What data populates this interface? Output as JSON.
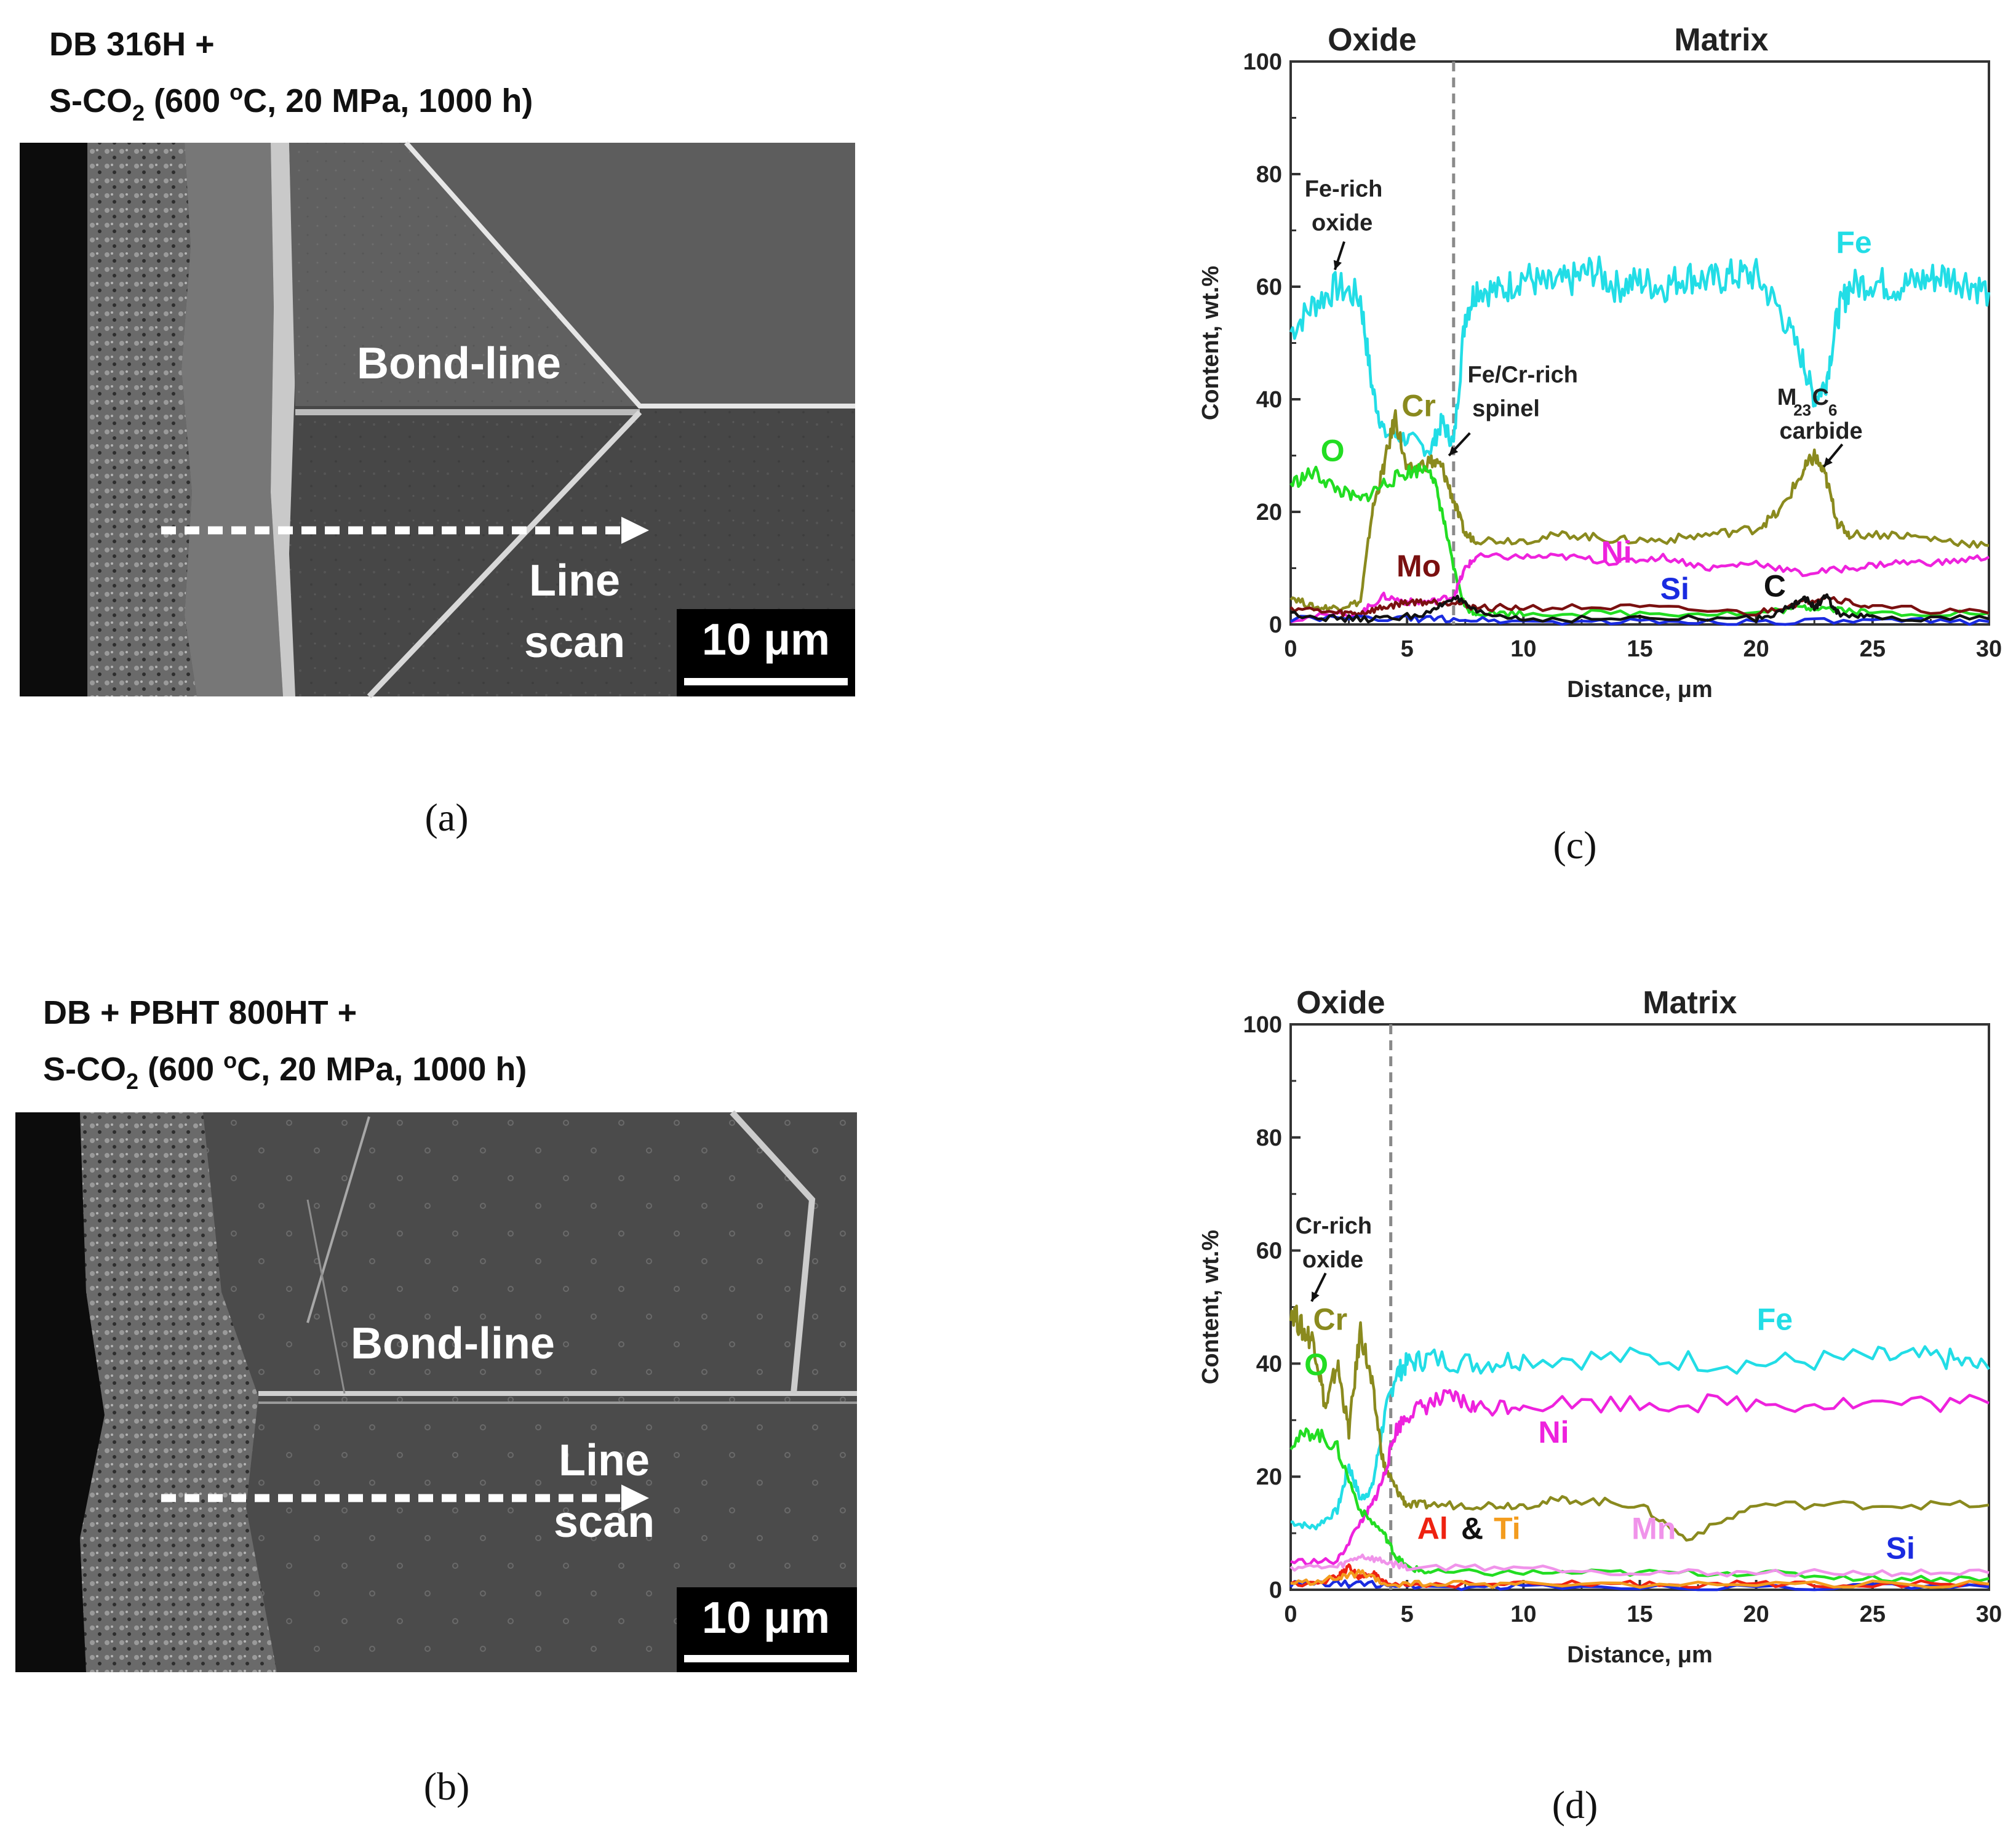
{
  "panels": {
    "a": {
      "title_line1": "DB 316H +",
      "title_line2_pre": "S-CO",
      "title_line2_sub": "2",
      "title_line2_post": " (600 ",
      "title_degree": "o",
      "title_line2_tail": "C, 20 MPa, 1000 h)",
      "label_bondline": "Bond-line",
      "label_line": "Line",
      "label_scan": "scan",
      "scale_bar": "10 μm",
      "caption": "(a)"
    },
    "b": {
      "title_line1": "DB + PBHT 800HT +",
      "title_line2_pre": "S-CO",
      "title_line2_sub": "2",
      "title_line2_post": " (600 ",
      "title_degree": "o",
      "title_line2_tail": "C, 20 MPa, 1000 h)",
      "label_bondline": "Bond-line",
      "label_line": "Line",
      "label_scan": "scan",
      "scale_bar": "10 μm",
      "caption": "(b)"
    },
    "c": {
      "caption": "(c)"
    },
    "d": {
      "caption": "(d)"
    }
  },
  "chart_data": [
    {
      "id": "c",
      "type": "line",
      "xlabel": "Distance, μm",
      "ylabel": "Content, wt.%",
      "xlim": [
        0,
        30
      ],
      "ylim": [
        0,
        100
      ],
      "xticks": [
        0,
        5,
        10,
        15,
        20,
        25,
        30
      ],
      "yticks": [
        0,
        20,
        40,
        60,
        80,
        100
      ],
      "region_labels": {
        "oxide": "Oxide",
        "matrix": "Matrix"
      },
      "boundary_x": 7.0,
      "annotations": [
        {
          "text": "Fe-rich",
          "x": 0.6,
          "y": 76
        },
        {
          "text": "oxide",
          "x": 0.9,
          "y": 70
        },
        {
          "text": "Fe/Cr-rich",
          "x": 7.6,
          "y": 43
        },
        {
          "text": "spinel",
          "x": 7.8,
          "y": 37
        },
        {
          "text": "M",
          "x": 20.9,
          "y": 39
        },
        {
          "text": "23",
          "x": 21.6,
          "y": 38
        },
        {
          "text": "C",
          "x": 22.4,
          "y": 39
        },
        {
          "text": "6",
          "x": 23.1,
          "y": 38
        },
        {
          "text": "carbide",
          "x": 21.0,
          "y": 33
        }
      ],
      "arrows": [
        {
          "from": [
            2.3,
            68
          ],
          "to": [
            1.9,
            63
          ]
        },
        {
          "from": [
            7.7,
            34
          ],
          "to": [
            6.8,
            30
          ]
        },
        {
          "from": [
            23.7,
            32
          ],
          "to": [
            22.9,
            28
          ]
        }
      ],
      "series": [
        {
          "name": "Fe",
          "color": "#22DDE6",
          "label_x": 24.2,
          "label_y": 66,
          "x": [
            0,
            1,
            2,
            3,
            3.5,
            4,
            5,
            6,
            6.5,
            7,
            7.5,
            8,
            9,
            10,
            11,
            12,
            13,
            14,
            15,
            16,
            17,
            18,
            19,
            20,
            21,
            22,
            22.5,
            23,
            23.5,
            24,
            25,
            26,
            27,
            28,
            29,
            30
          ],
          "y": [
            52,
            57,
            60,
            58,
            42,
            34,
            33,
            31,
            36,
            32,
            55,
            60,
            59,
            62,
            60,
            61,
            63,
            60,
            61,
            60,
            62,
            61,
            62,
            62,
            56,
            47,
            40,
            43,
            55,
            60,
            61,
            60,
            61,
            62,
            61,
            59
          ]
        },
        {
          "name": "Cr",
          "color": "#8A8A1E",
          "label_x": 5.5,
          "label_y": 37,
          "x": [
            0,
            1,
            2,
            3,
            3.5,
            4,
            4.5,
            5,
            6,
            6.5,
            7,
            7.5,
            8,
            10,
            12,
            14,
            16,
            18,
            20,
            21,
            22,
            22.5,
            23,
            23.5,
            24,
            26,
            28,
            30
          ],
          "y": [
            5,
            3,
            3,
            4,
            20,
            28,
            37,
            27,
            29,
            28,
            22,
            16,
            15,
            15,
            16,
            15,
            15,
            16,
            17,
            20,
            27,
            30,
            26,
            18,
            16,
            16,
            15,
            14
          ]
        },
        {
          "name": "O",
          "color": "#22DD22",
          "label_x": 1.8,
          "label_y": 29,
          "x": [
            0,
            1,
            2,
            3,
            4,
            5,
            6,
            6.5,
            7,
            7.5,
            8,
            10,
            15,
            20,
            22,
            23,
            25,
            30
          ],
          "y": [
            25,
            27,
            24,
            22,
            25,
            27,
            28,
            20,
            10,
            3,
            2,
            2,
            2,
            2,
            3,
            3,
            2,
            2
          ]
        },
        {
          "name": "Ni",
          "color": "#EE22DD",
          "label_x": 14.0,
          "label_y": 11,
          "x": [
            0,
            3,
            4,
            5,
            6,
            7,
            7.5,
            8,
            10,
            12,
            14,
            16,
            18,
            20,
            22,
            24,
            26,
            28,
            30
          ],
          "y": [
            1,
            2,
            5,
            4,
            4,
            5,
            10,
            12,
            12,
            12,
            11,
            12,
            10,
            11,
            9,
            10,
            11,
            11,
            12
          ]
        },
        {
          "name": "Mo",
          "color": "#7A1010",
          "label_x": 5.5,
          "label_y": 8.5,
          "x": [
            0,
            2,
            3,
            4,
            5,
            6,
            7,
            8,
            10,
            15,
            20,
            22,
            23,
            25,
            30
          ],
          "y": [
            3,
            2,
            2,
            3,
            4,
            4,
            4,
            3,
            3,
            3,
            2,
            4,
            5,
            3,
            2
          ]
        },
        {
          "name": "Si",
          "color": "#1A2BE0",
          "label_x": 16.5,
          "label_y": 4.5,
          "x": [
            0,
            5,
            7,
            10,
            15,
            20,
            25,
            30
          ],
          "y": [
            1,
            1,
            1,
            0.5,
            0.5,
            0.5,
            0.5,
            0.5
          ]
        },
        {
          "name": "C",
          "color": "#111111",
          "label_x": 20.8,
          "label_y": 5,
          "x": [
            0,
            2,
            4,
            6,
            7,
            8,
            10,
            15,
            20,
            21.5,
            22,
            22.5,
            23,
            23.5,
            25,
            30
          ],
          "y": [
            2,
            1,
            1,
            2,
            5,
            2,
            1,
            1,
            1,
            3,
            5,
            3,
            5,
            2,
            1,
            1
          ]
        }
      ]
    },
    {
      "id": "d",
      "type": "line",
      "xlabel": "Distance, μm",
      "ylabel": "Content, wt.%",
      "xlim": [
        0,
        30
      ],
      "ylim": [
        0,
        100
      ],
      "xticks": [
        0,
        5,
        10,
        15,
        20,
        25,
        30
      ],
      "yticks": [
        0,
        20,
        40,
        60,
        80,
        100
      ],
      "region_labels": {
        "oxide": "Oxide",
        "matrix": "Matrix"
      },
      "boundary_x": 4.3,
      "annotations": [
        {
          "text": "Cr-rich",
          "x": 0.2,
          "y": 63
        },
        {
          "text": "oxide",
          "x": 0.5,
          "y": 57
        }
      ],
      "arrows": [
        {
          "from": [
            1.5,
            56
          ],
          "to": [
            0.9,
            51
          ]
        }
      ],
      "series": [
        {
          "name": "Fe",
          "color": "#22DDE6",
          "label_x": 20.8,
          "label_y": 46,
          "x": [
            0,
            1,
            2,
            2.5,
            3,
            3.5,
            4,
            4.5,
            5,
            6,
            8,
            10,
            15,
            20,
            25,
            28,
            30
          ],
          "y": [
            12,
            11,
            14,
            22,
            16,
            18,
            30,
            38,
            40,
            41,
            40,
            41,
            41,
            40,
            41,
            41,
            39
          ]
        },
        {
          "name": "Cr",
          "color": "#8A8A1E",
          "label_x": 1.7,
          "label_y": 46,
          "x": [
            0,
            0.5,
            1,
            1.5,
            2,
            2.5,
            3,
            3.5,
            4,
            4.5,
            5,
            6,
            8,
            10,
            12,
            15,
            17,
            20,
            25,
            30
          ],
          "y": [
            50,
            46,
            44,
            32,
            40,
            28,
            46,
            36,
            22,
            18,
            15,
            15,
            15,
            15,
            16,
            15,
            9,
            15,
            15,
            15
          ]
        },
        {
          "name": "Ni",
          "color": "#EE22DD",
          "label_x": 11.3,
          "label_y": 26,
          "x": [
            0,
            2,
            3,
            3.5,
            4,
            4.5,
            5,
            6,
            7,
            8,
            10,
            15,
            20,
            25,
            30
          ],
          "y": [
            5,
            5,
            12,
            15,
            20,
            28,
            31,
            33,
            34,
            32,
            33,
            33,
            33,
            33,
            33
          ]
        },
        {
          "name": "O",
          "color": "#22DD22",
          "label_x": 1.1,
          "label_y": 38,
          "x": [
            0,
            1,
            2,
            3,
            4,
            4.5,
            5,
            6,
            10,
            15,
            20,
            25,
            30
          ],
          "y": [
            26,
            28,
            25,
            14,
            10,
            6,
            4,
            3,
            3,
            3,
            3,
            2,
            2
          ]
        },
        {
          "name": "Mn",
          "color": "#F093EA",
          "label_x": 15.6,
          "label_y": 9,
          "x": [
            0,
            2,
            3,
            4,
            5,
            10,
            15,
            20,
            25,
            30
          ],
          "y": [
            4,
            4,
            6,
            5,
            4,
            4,
            3,
            3,
            3,
            3
          ]
        },
        {
          "name": "Si",
          "color": "#1A2BE0",
          "label_x": 26.2,
          "label_y": 5.5,
          "x": [
            0,
            2,
            4,
            6,
            10,
            20,
            30
          ],
          "y": [
            1,
            1,
            1,
            0.5,
            0.5,
            0.5,
            0.5
          ]
        },
        {
          "name": "Al",
          "color": "#EE2211",
          "label_x": 6.1,
          "label_y": 9,
          "x": [
            0,
            2,
            2.5,
            3,
            3.5,
            4,
            5,
            10,
            15,
            20,
            25,
            30
          ],
          "y": [
            1,
            2,
            4,
            2,
            3,
            1,
            1,
            1,
            1,
            1,
            1,
            1
          ]
        },
        {
          "name": "&",
          "color": "#111111",
          "label_x": 7.8,
          "label_y": 9,
          "x": [],
          "y": []
        },
        {
          "name": "Ti",
          "color": "#F39C1E",
          "label_x": 9.3,
          "label_y": 9,
          "x": [
            0,
            2,
            3,
            4,
            6,
            10,
            20,
            30
          ],
          "y": [
            1,
            2,
            3,
            1,
            1,
            1,
            1,
            1
          ]
        }
      ]
    }
  ]
}
